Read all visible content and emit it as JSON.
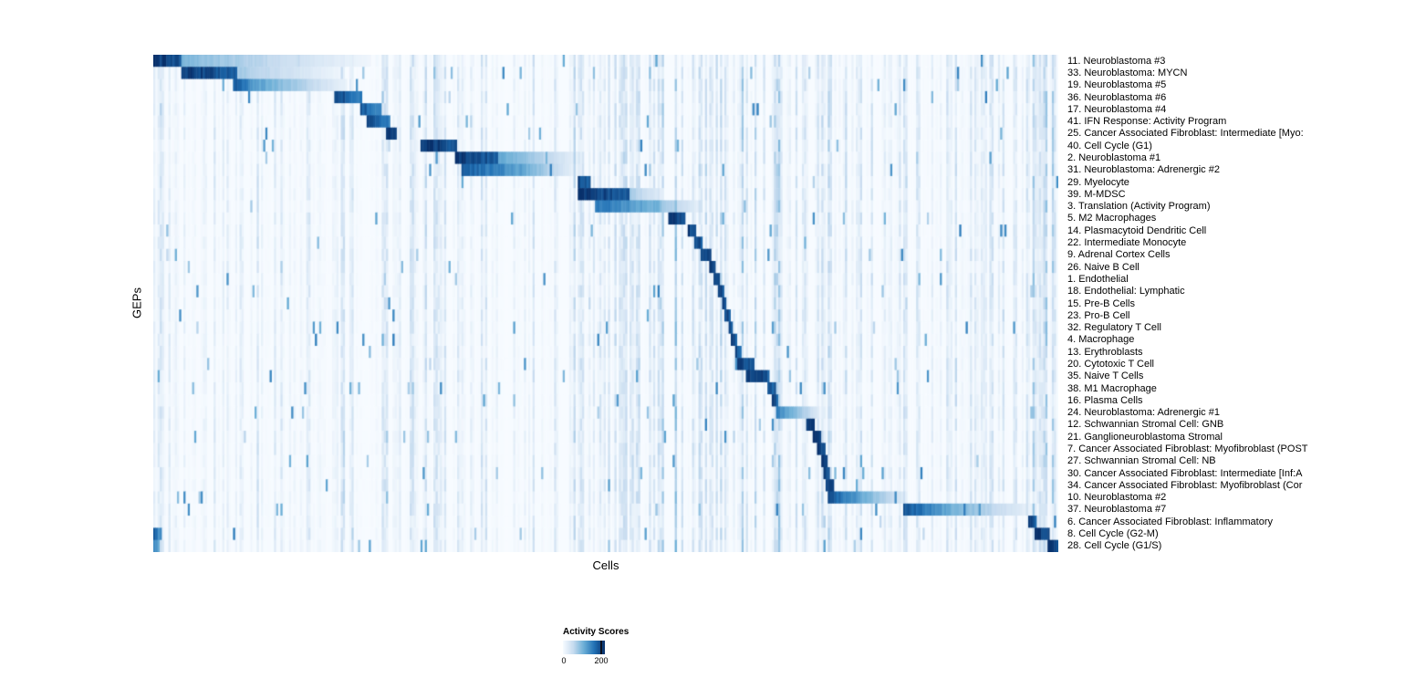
{
  "figure": {
    "background": "#ffffff"
  },
  "chart_data": {
    "type": "heatmap",
    "title": "",
    "xlabel": "Cells",
    "ylabel": "GEPs",
    "legend": {
      "title": "Activity Scores",
      "min": 0,
      "max": 200,
      "min_label": "0",
      "max_label": "200",
      "position": "bottom-center"
    },
    "colorscale": [
      "#f7fbff",
      "#c6dbef",
      "#6baed6",
      "#2171b5",
      "#08306b"
    ],
    "grid": false,
    "n_columns": 420,
    "noise_streaks": [
      [
        0.0,
        0.012,
        0.45
      ],
      [
        0.285,
        0.345,
        0.3
      ],
      [
        0.455,
        0.565,
        0.38
      ],
      [
        0.575,
        0.705,
        0.5
      ],
      [
        0.73,
        0.77,
        0.4
      ],
      [
        0.88,
        0.925,
        0.35
      ],
      [
        0.96,
        1.0,
        0.45
      ]
    ],
    "rows": [
      {
        "label": "11. Neuroblastoma #3",
        "blocks": [
          [
            0.0,
            0.03,
            1.0,
            0.85
          ],
          [
            0.03,
            0.24,
            0.45,
            0.04
          ]
        ]
      },
      {
        "label": "33. Neuroblastoma: MYCN",
        "blocks": [
          [
            0.03,
            0.092,
            0.98,
            0.8
          ],
          [
            0.092,
            0.21,
            0.35,
            0.04
          ]
        ]
      },
      {
        "label": "19. Neuroblastoma #5",
        "blocks": [
          [
            0.088,
            0.115,
            0.85,
            0.55
          ],
          [
            0.115,
            0.215,
            0.55,
            0.06
          ]
        ]
      },
      {
        "label": "36. Neuroblastoma #6",
        "blocks": [
          [
            0.2,
            0.232,
            0.92,
            0.7
          ]
        ]
      },
      {
        "label": "17. Neuroblastoma #4",
        "blocks": [
          [
            0.228,
            0.252,
            0.88,
            0.62
          ]
        ]
      },
      {
        "label": "41. IFN Response: Activity Program",
        "blocks": [
          [
            0.236,
            0.262,
            0.95,
            0.7
          ]
        ]
      },
      {
        "label": "25. Cancer Associated Fibroblast: Intermediate [Myo:",
        "blocks": [
          [
            0.256,
            0.27,
            0.95,
            0.85
          ]
        ]
      },
      {
        "label": "40. Cell Cycle (G1)",
        "blocks": [
          [
            0.296,
            0.336,
            1.0,
            0.85
          ]
        ]
      },
      {
        "label": "2. Neuroblastoma #1",
        "blocks": [
          [
            0.334,
            0.382,
            1.0,
            0.8
          ],
          [
            0.382,
            0.47,
            0.55,
            0.08
          ]
        ]
      },
      {
        "label": "31. Neuroblastoma: Adrenergic #2",
        "blocks": [
          [
            0.34,
            0.405,
            0.85,
            0.55
          ],
          [
            0.405,
            0.468,
            0.55,
            0.06
          ]
        ]
      },
      {
        "label": "29. Myelocyte",
        "blocks": [
          [
            0.468,
            0.484,
            0.92,
            0.8
          ]
        ]
      },
      {
        "label": "39. M-MDSC",
        "blocks": [
          [
            0.47,
            0.527,
            1.0,
            0.82
          ],
          [
            0.527,
            0.565,
            0.35,
            0.08
          ]
        ]
      },
      {
        "label": "3. Translation (Activity Program)",
        "blocks": [
          [
            0.488,
            0.56,
            0.75,
            0.45
          ],
          [
            0.56,
            0.605,
            0.4,
            0.08
          ]
        ]
      },
      {
        "label": "5. M2 Macrophages",
        "blocks": [
          [
            0.57,
            0.588,
            1.0,
            0.88
          ]
        ]
      },
      {
        "label": "14. Plasmacytoid Dendritic Cell",
        "blocks": [
          [
            0.59,
            0.599,
            0.95,
            0.88
          ]
        ]
      },
      {
        "label": "22. Intermediate Monocyte",
        "blocks": [
          [
            0.597,
            0.606,
            0.95,
            0.85
          ]
        ]
      },
      {
        "label": "9. Adrenal Cortex Cells",
        "blocks": [
          [
            0.604,
            0.617,
            0.95,
            0.85
          ]
        ]
      },
      {
        "label": "26. Naive B Cell",
        "blocks": [
          [
            0.614,
            0.622,
            0.95,
            0.85
          ]
        ]
      },
      {
        "label": "1. Endothelial",
        "blocks": [
          [
            0.62,
            0.627,
            0.95,
            0.85
          ]
        ]
      },
      {
        "label": "18. Endothelial: Lymphatic",
        "blocks": [
          [
            0.625,
            0.631,
            0.92,
            0.85
          ]
        ]
      },
      {
        "label": "15. Pre-B Cells",
        "blocks": [
          [
            0.628,
            0.634,
            0.92,
            0.85
          ]
        ]
      },
      {
        "label": "23. Pro-B Cell",
        "blocks": [
          [
            0.632,
            0.637,
            0.92,
            0.85
          ]
        ]
      },
      {
        "label": "32. Regulatory T Cell",
        "blocks": [
          [
            0.635,
            0.641,
            0.92,
            0.85
          ]
        ]
      },
      {
        "label": "4. Macrophage",
        "blocks": [
          [
            0.638,
            0.645,
            0.92,
            0.82
          ]
        ]
      },
      {
        "label": "13. Erythroblasts",
        "blocks": [
          [
            0.642,
            0.649,
            0.92,
            0.82
          ]
        ]
      },
      {
        "label": "20. Cytotoxic T Cell",
        "blocks": [
          [
            0.645,
            0.664,
            0.95,
            0.8
          ]
        ]
      },
      {
        "label": "35. Naive T Cells",
        "blocks": [
          [
            0.655,
            0.681,
            1.0,
            0.85
          ]
        ]
      },
      {
        "label": "38. M1 Macrophage",
        "blocks": [
          [
            0.678,
            0.687,
            0.92,
            0.82
          ]
        ]
      },
      {
        "label": "16. Plasma Cells",
        "blocks": [
          [
            0.684,
            0.691,
            0.92,
            0.82
          ]
        ]
      },
      {
        "label": "24. Neuroblastoma: Adrenergic #1",
        "blocks": [
          [
            0.688,
            0.736,
            0.7,
            0.12
          ]
        ]
      },
      {
        "label": "12. Schwannian Stromal Cell: GNB",
        "blocks": [
          [
            0.722,
            0.731,
            1.0,
            0.9
          ]
        ]
      },
      {
        "label": "21. Ganglioneuroblastoma Stromal",
        "blocks": [
          [
            0.728,
            0.738,
            1.0,
            0.9
          ]
        ]
      },
      {
        "label": "7. Cancer Associated Fibroblast: Myofibroblast (POST",
        "blocks": [
          [
            0.734,
            0.742,
            1.0,
            0.9
          ]
        ]
      },
      {
        "label": "27. Schwannian Stromal Cell: NB",
        "blocks": [
          [
            0.738,
            0.745,
            0.98,
            0.88
          ]
        ]
      },
      {
        "label": "30. Cancer Associated Fibroblast: Intermediate [Inf:A",
        "blocks": [
          [
            0.741,
            0.748,
            0.95,
            0.85
          ]
        ]
      },
      {
        "label": "34. Cancer Associated Fibroblast: Myofibroblast (Cor",
        "blocks": [
          [
            0.744,
            0.752,
            0.95,
            0.85
          ]
        ]
      },
      {
        "label": "10. Neuroblastoma #2",
        "blocks": [
          [
            0.746,
            0.79,
            0.88,
            0.45
          ],
          [
            0.79,
            0.832,
            0.45,
            0.1
          ]
        ]
      },
      {
        "label": "37. Neuroblastoma #7",
        "blocks": [
          [
            0.828,
            0.88,
            0.88,
            0.5
          ],
          [
            0.88,
            0.972,
            0.5,
            0.06
          ]
        ]
      },
      {
        "label": "6. Cancer Associated Fibroblast: Inflammatory",
        "blocks": [
          [
            0.966,
            0.976,
            0.92,
            0.82
          ]
        ]
      },
      {
        "label": "8. Cell Cycle (G2-M)",
        "blocks": [
          [
            0.0,
            0.008,
            0.8,
            0.6
          ],
          [
            0.974,
            0.99,
            1.0,
            0.9
          ]
        ]
      },
      {
        "label": "28. Cell Cycle (G1/S)",
        "blocks": [
          [
            0.0,
            0.006,
            0.7,
            0.5
          ],
          [
            0.988,
            1.0,
            1.0,
            0.92
          ]
        ]
      }
    ]
  }
}
